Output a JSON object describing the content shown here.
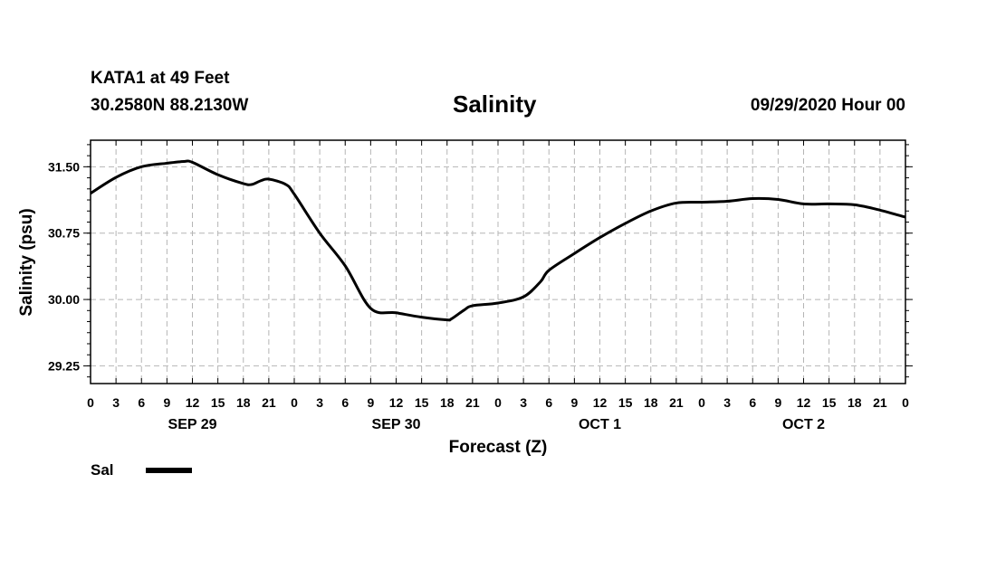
{
  "header": {
    "station": "KATA1 at 49 Feet",
    "coords": "30.2580N 88.2130W",
    "title": "Salinity",
    "datetime": "09/29/2020 Hour 00"
  },
  "chart_data": {
    "type": "line",
    "title": "Salinity",
    "xlabel": "Forecast (Z)",
    "ylabel": "Salinity (psu)",
    "x_unit": "forecast hour",
    "xlim": [
      0,
      96
    ],
    "ylim": [
      29.05,
      31.8
    ],
    "yticks": [
      29.25,
      30.0,
      30.75,
      31.5
    ],
    "ytick_labels": [
      "29.25",
      "30.00",
      "30.75",
      "31.50"
    ],
    "xtick_labels": [
      "0",
      "3",
      "6",
      "9",
      "12",
      "15",
      "18",
      "21",
      "0",
      "3",
      "6",
      "9",
      "12",
      "15",
      "18",
      "21",
      "0",
      "3",
      "6",
      "9",
      "12",
      "15",
      "18",
      "21",
      "0",
      "3",
      "6",
      "9",
      "12",
      "15",
      "18",
      "21",
      "0"
    ],
    "day_labels": [
      {
        "label": "SEP 29",
        "hour": 12
      },
      {
        "label": "SEP 30",
        "hour": 36
      },
      {
        "label": "OCT 1",
        "hour": 60
      },
      {
        "label": "OCT 2",
        "hour": 84
      }
    ],
    "grid": true,
    "legend": {
      "position": "bottom-left"
    },
    "series": [
      {
        "name": "Sal",
        "color": "#000000",
        "x": [
          0,
          3,
          6,
          9,
          11,
          12,
          15,
          18,
          19,
          20,
          21,
          23,
          24,
          27,
          30,
          33,
          36,
          39,
          42,
          42.5,
          44,
          45,
          48,
          51,
          53,
          54,
          57,
          60,
          63,
          66,
          69,
          72,
          75,
          78,
          81,
          84,
          87,
          90,
          93,
          96
        ],
        "values": [
          31.2,
          31.38,
          31.5,
          31.54,
          31.56,
          31.55,
          31.41,
          31.31,
          31.3,
          31.34,
          31.36,
          31.3,
          31.19,
          30.75,
          30.38,
          29.9,
          29.85,
          29.8,
          29.77,
          29.78,
          29.88,
          29.93,
          29.96,
          30.03,
          30.2,
          30.33,
          30.52,
          30.7,
          30.86,
          31.0,
          31.09,
          31.1,
          31.11,
          31.14,
          31.13,
          31.08,
          31.08,
          31.07,
          31.01,
          30.93
        ]
      }
    ]
  }
}
